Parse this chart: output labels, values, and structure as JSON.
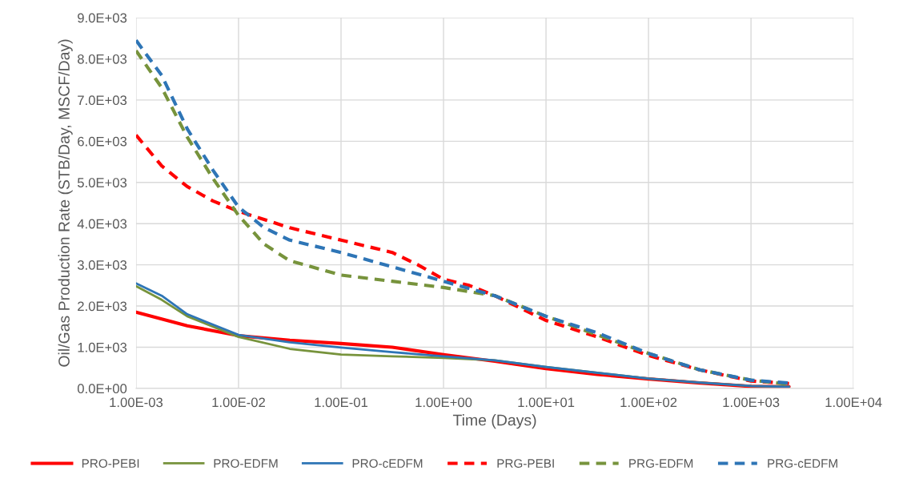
{
  "chart_data": {
    "type": "line",
    "xlabel": "Time (Days)",
    "ylabel": "Oil/Gas Production Rate (STB/Day, MSCF/Day)",
    "log": "x",
    "grid": true,
    "legend": "bottom",
    "xlim": [
      0.001,
      10000
    ],
    "xticks": [
      {
        "value": 0.001,
        "label": "1.00E-03"
      },
      {
        "value": 0.01,
        "label": "1.00E-02"
      },
      {
        "value": 0.1,
        "label": "1.00E-01"
      },
      {
        "value": 1,
        "label": "1.00E+00"
      },
      {
        "value": 10,
        "label": "1.00E+01"
      },
      {
        "value": 100,
        "label": "1.00E+02"
      },
      {
        "value": 1000,
        "label": "1.00E+03"
      },
      {
        "value": 10000,
        "label": "1.00E+04"
      }
    ],
    "ylim": [
      0,
      9000
    ],
    "yticks": [
      {
        "value": 0,
        "label": "0.0E+00"
      },
      {
        "value": 1000,
        "label": "1.0E+03"
      },
      {
        "value": 2000,
        "label": "2.0E+03"
      },
      {
        "value": 3000,
        "label": "3.0E+03"
      },
      {
        "value": 4000,
        "label": "4.0E+03"
      },
      {
        "value": 5000,
        "label": "5.0E+03"
      },
      {
        "value": 6000,
        "label": "6.0E+03"
      },
      {
        "value": 7000,
        "label": "7.0E+03"
      },
      {
        "value": 8000,
        "label": "8.0E+03"
      },
      {
        "value": 9000,
        "label": "9.0E+03"
      }
    ],
    "series": [
      {
        "name": "PRO-PEBI",
        "color": "#ff0000",
        "line_style": "solid",
        "x": [
          0.001,
          0.00316,
          0.01,
          0.0316,
          0.1,
          0.316,
          1,
          3.16,
          10,
          31.6,
          100,
          316,
          1000,
          2350
        ],
        "values": [
          1850,
          1520,
          1280,
          1170,
          1090,
          1000,
          820,
          660,
          480,
          340,
          230,
          130,
          50,
          40
        ]
      },
      {
        "name": "PRO-EDFM",
        "color": "#77933c",
        "line_style": "solid",
        "x": [
          0.001,
          0.00178,
          0.00316,
          0.01,
          0.0316,
          0.1,
          0.316,
          1,
          3.16,
          10,
          31.6,
          100,
          316,
          1000,
          2350
        ],
        "values": [
          2480,
          2150,
          1750,
          1250,
          960,
          820,
          780,
          740,
          680,
          520,
          380,
          240,
          140,
          60,
          40
        ]
      },
      {
        "name": "PRO-cEDFM",
        "color": "#2e75b6",
        "line_style": "solid",
        "x": [
          0.001,
          0.00178,
          0.00316,
          0.01,
          0.0316,
          0.1,
          0.316,
          1,
          3.16,
          10,
          31.6,
          100,
          316,
          1000,
          2350
        ],
        "values": [
          2550,
          2250,
          1800,
          1300,
          1120,
          990,
          880,
          780,
          680,
          520,
          380,
          240,
          140,
          60,
          40
        ]
      },
      {
        "name": "PRG-PEBI",
        "color": "#ff0000",
        "line_style": "dashed",
        "x": [
          0.001,
          0.00178,
          0.00316,
          0.00562,
          0.01,
          0.0316,
          0.1,
          0.316,
          0.562,
          1,
          1.78,
          3.16,
          10,
          31.6,
          100,
          316,
          1000,
          2350
        ],
        "values": [
          6150,
          5400,
          4900,
          4550,
          4300,
          3900,
          3600,
          3300,
          3000,
          2650,
          2500,
          2250,
          1650,
          1250,
          800,
          450,
          180,
          120
        ]
      },
      {
        "name": "PRG-EDFM",
        "color": "#77933c",
        "line_style": "dashed",
        "x": [
          0.001,
          0.00178,
          0.00316,
          0.00562,
          0.01,
          0.0178,
          0.0316,
          0.1,
          0.316,
          1,
          3.16,
          10,
          31.6,
          100,
          316,
          1000,
          2350
        ],
        "values": [
          8200,
          7300,
          6100,
          5100,
          4200,
          3500,
          3100,
          2750,
          2600,
          2450,
          2250,
          1750,
          1300,
          850,
          450,
          200,
          100
        ]
      },
      {
        "name": "PRG-cEDFM",
        "color": "#2e75b6",
        "line_style": "dashed",
        "x": [
          0.001,
          0.00178,
          0.00316,
          0.00562,
          0.01,
          0.0178,
          0.0316,
          0.1,
          0.316,
          1,
          3.16,
          10,
          31.6,
          100,
          316,
          1000,
          2350
        ],
        "values": [
          8450,
          7600,
          6300,
          5300,
          4400,
          3900,
          3600,
          3300,
          2950,
          2600,
          2250,
          1750,
          1350,
          850,
          450,
          200,
          130
        ]
      }
    ]
  }
}
